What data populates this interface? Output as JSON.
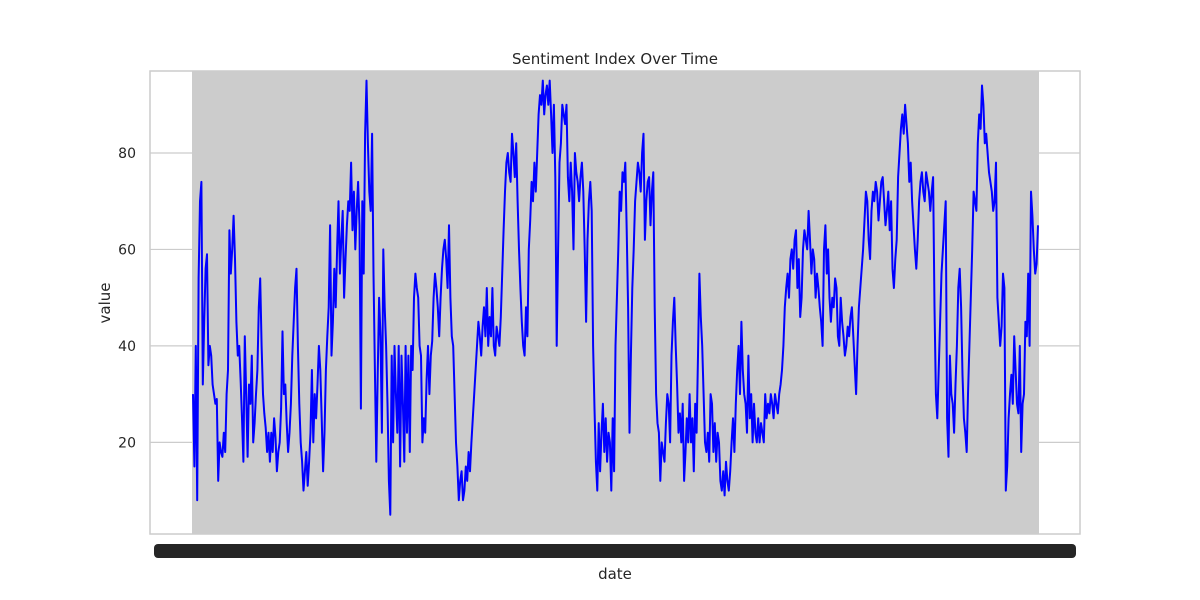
{
  "chart_data": {
    "type": "line",
    "title": "Sentiment Index Over Time",
    "xlabel": "date",
    "ylabel": "value",
    "ylim": [
      1,
      97
    ],
    "yticks": [
      20,
      40,
      60,
      80
    ],
    "grid": true,
    "x_tick_labels_note": "x-axis tick labels are densely overprinted and illegible",
    "colors": {
      "line": "#0000ff",
      "plot_bg": "#cccccc",
      "grid": "#cccccc",
      "frame": "#cccccc",
      "ticks_band": "#262626"
    },
    "series": [
      {
        "values": [
          30,
          15,
          40,
          8,
          54,
          70,
          74,
          32,
          45,
          56,
          59,
          36,
          40,
          38,
          32,
          30,
          28,
          29,
          12,
          20,
          18,
          17,
          22,
          18,
          30,
          35,
          64,
          55,
          60,
          67,
          58,
          45,
          38,
          40,
          33,
          25,
          16,
          42,
          30,
          17,
          32,
          28,
          38,
          20,
          24,
          30,
          35,
          48,
          54,
          40,
          30,
          26,
          23,
          18,
          22,
          16,
          22,
          18,
          25,
          21,
          14,
          18,
          20,
          27,
          43,
          30,
          32,
          24,
          18,
          22,
          28,
          38,
          45,
          52,
          56,
          40,
          28,
          20,
          16,
          10,
          14,
          18,
          11,
          16,
          22,
          35,
          20,
          30,
          25,
          32,
          40,
          35,
          25,
          14,
          22,
          35,
          42,
          48,
          65,
          38,
          45,
          56,
          48,
          60,
          70,
          55,
          62,
          68,
          50,
          58,
          65,
          70,
          68,
          78,
          64,
          72,
          60,
          68,
          74,
          65,
          27,
          70,
          55,
          84,
          95,
          82,
          72,
          68,
          84,
          55,
          35,
          16,
          34,
          50,
          42,
          22,
          60,
          48,
          40,
          28,
          12,
          5,
          38,
          20,
          40,
          30,
          22,
          40,
          15,
          38,
          28,
          16,
          40,
          22,
          38,
          18,
          40,
          35,
          50,
          55,
          52,
          50,
          40,
          38,
          20,
          25,
          22,
          33,
          40,
          30,
          38,
          41,
          50,
          55,
          52,
          48,
          42,
          50,
          56,
          60,
          62,
          58,
          52,
          65,
          50,
          42,
          40,
          30,
          20,
          15,
          8,
          12,
          14,
          8,
          10,
          15,
          12,
          18,
          14,
          20,
          25,
          30,
          35,
          40,
          45,
          42,
          38,
          44,
          48,
          42,
          52,
          40,
          46,
          42,
          52,
          40,
          38,
          44,
          42,
          40,
          46,
          55,
          64,
          72,
          78,
          80,
          76,
          74,
          84,
          80,
          75,
          82,
          70,
          60,
          52,
          45,
          40,
          38,
          48,
          42,
          60,
          66,
          74,
          70,
          78,
          72,
          80,
          88,
          92,
          90,
          95,
          88,
          92,
          94,
          90,
          95,
          88,
          80,
          90,
          75,
          40,
          60,
          78,
          82,
          90,
          88,
          86,
          90,
          75,
          70,
          78,
          72,
          60,
          80,
          76,
          74,
          70,
          75,
          78,
          72,
          60,
          45,
          62,
          70,
          74,
          68,
          40,
          27,
          16,
          10,
          24,
          14,
          22,
          28,
          18,
          25,
          16,
          22,
          20,
          10,
          25,
          14,
          40,
          50,
          60,
          72,
          68,
          76,
          74,
          78,
          64,
          48,
          22,
          38,
          52,
          60,
          70,
          74,
          78,
          76,
          72,
          80,
          84,
          62,
          70,
          74,
          75,
          65,
          72,
          76,
          48,
          30,
          24,
          22,
          12,
          20,
          18,
          16,
          24,
          30,
          28,
          20,
          38,
          45,
          50,
          40,
          32,
          22,
          26,
          20,
          28,
          12,
          18,
          25,
          20,
          30,
          20,
          25,
          14,
          28,
          22,
          38,
          55,
          46,
          40,
          30,
          20,
          18,
          22,
          16,
          30,
          28,
          18,
          24,
          16,
          22,
          20,
          12,
          10,
          14,
          9,
          16,
          12,
          10,
          14,
          20,
          25,
          18,
          28,
          35,
          40,
          30,
          45,
          35,
          30,
          28,
          22,
          38,
          25,
          30,
          20,
          28,
          22,
          20,
          25,
          20,
          24,
          22,
          20,
          30,
          25,
          28,
          26,
          30,
          28,
          25,
          30,
          28,
          26,
          30,
          32,
          35,
          40,
          48,
          52,
          55,
          50,
          58,
          60,
          56,
          62,
          64,
          52,
          58,
          46,
          50,
          60,
          64,
          62,
          60,
          68,
          62,
          55,
          60,
          58,
          50,
          55,
          52,
          48,
          45,
          40,
          60,
          65,
          55,
          60,
          50,
          45,
          50,
          48,
          54,
          52,
          42,
          40,
          50,
          45,
          42,
          38,
          40,
          44,
          42,
          46,
          48,
          42,
          36,
          30,
          40,
          48,
          52,
          56,
          60,
          66,
          72,
          70,
          62,
          58,
          68,
          72,
          70,
          74,
          72,
          66,
          70,
          74,
          75,
          70,
          65,
          68,
          72,
          64,
          70,
          56,
          52,
          58,
          62,
          75,
          80,
          85,
          88,
          84,
          90,
          86,
          82,
          74,
          78,
          70,
          65,
          60,
          56,
          62,
          70,
          74,
          76,
          72,
          70,
          76,
          74,
          72,
          68,
          72,
          75,
          48,
          30,
          25,
          35,
          45,
          55,
          60,
          65,
          70,
          25,
          17,
          38,
          30,
          28,
          22,
          32,
          40,
          52,
          56,
          48,
          34,
          25,
          22,
          18,
          30,
          40,
          50,
          60,
          72,
          70,
          68,
          82,
          88,
          85,
          94,
          90,
          82,
          84,
          80,
          76,
          74,
          72,
          68,
          70,
          78,
          50,
          45,
          40,
          44,
          55,
          52,
          10,
          15,
          25,
          30,
          34,
          28,
          42,
          35,
          28,
          26,
          40,
          18,
          28,
          30,
          45,
          42,
          55,
          40,
          72,
          67,
          60,
          55,
          57,
          65
        ]
      }
    ]
  }
}
